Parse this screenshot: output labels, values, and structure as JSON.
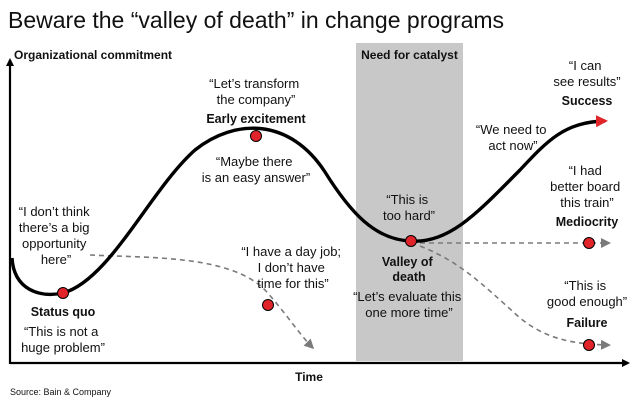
{
  "title": "Beware the “valley of death” in change programs",
  "y_axis_label": "Organizational commitment",
  "x_axis_label": "Time",
  "band_label": "Need for catalyst",
  "source": "Source: Bain & Company",
  "colors": {
    "accent": "#e0242a",
    "band": "#c8c8c8",
    "line": "#000000",
    "dashed": "#7a7a7a"
  },
  "stages": {
    "status_quo": {
      "name": "Status quo",
      "quote_above": [
        "“I don’t think",
        "there’s a big",
        "opportunity",
        "here”"
      ],
      "quote_below": [
        "“This is not a",
        "huge problem”"
      ]
    },
    "early_excitement": {
      "name": "Early excitement",
      "quote_above": [
        "“Let’s transform",
        "the company”"
      ],
      "quote_below": [
        "“Maybe there",
        "is an easy answer”"
      ]
    },
    "job": {
      "quote": [
        "“I have a day job;",
        "I don’t have",
        "time for this”"
      ]
    },
    "valley": {
      "name": [
        "Valley of",
        "death"
      ],
      "quote_above": [
        "“This is",
        "too hard”"
      ],
      "quote_below": [
        "“Let’s evaluate this",
        "one more time”"
      ]
    },
    "act_now": {
      "quote": [
        "“We need to",
        "act now”"
      ]
    },
    "success": {
      "name": "Success",
      "quote": [
        "“I can",
        "see results”"
      ]
    },
    "mediocrity": {
      "name": "Mediocrity",
      "quote": [
        "“I had",
        "better board",
        "this train”"
      ]
    },
    "failure": {
      "name": "Failure",
      "quote": [
        "“This is",
        "good enough”"
      ]
    }
  }
}
